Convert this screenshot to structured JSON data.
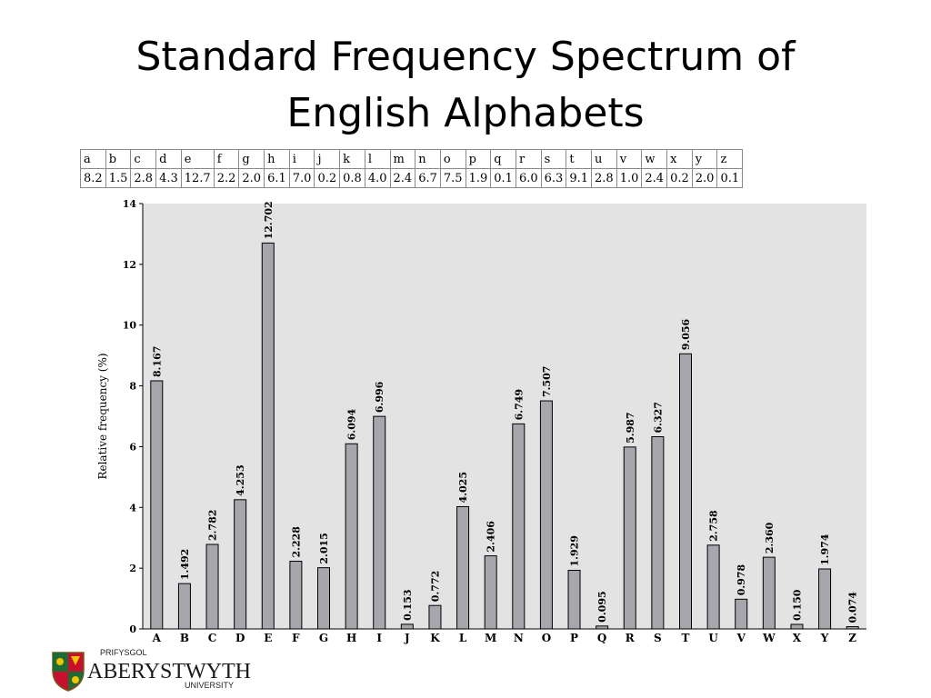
{
  "title_line1": "Standard Frequency Spectrum of",
  "title_line2": "English Alphabets",
  "table": {
    "letters": [
      "a",
      "b",
      "c",
      "d",
      "e",
      "f",
      "g",
      "h",
      "i",
      "j",
      "k",
      "l",
      "m",
      "n",
      "o",
      "p",
      "q",
      "r",
      "s",
      "t",
      "u",
      "v",
      "w",
      "x",
      "y",
      "z"
    ],
    "values": [
      "8.2",
      "1.5",
      "2.8",
      "4.3",
      "12.7",
      "2.2",
      "2.0",
      "6.1",
      "7.0",
      "0.2",
      "0.8",
      "4.0",
      "2.4",
      "6.7",
      "7.5",
      "1.9",
      "0.1",
      "6.0",
      "6.3",
      "9.1",
      "2.8",
      "1.0",
      "2.4",
      "0.2",
      "2.0",
      "0.1"
    ]
  },
  "chart_data": {
    "type": "bar",
    "categories": [
      "A",
      "B",
      "C",
      "D",
      "E",
      "F",
      "G",
      "H",
      "I",
      "J",
      "K",
      "L",
      "M",
      "N",
      "O",
      "P",
      "Q",
      "R",
      "S",
      "T",
      "U",
      "V",
      "W",
      "X",
      "Y",
      "Z"
    ],
    "values": [
      8.167,
      1.492,
      2.782,
      4.253,
      12.702,
      2.228,
      2.015,
      6.094,
      6.996,
      0.153,
      0.772,
      4.025,
      2.406,
      6.749,
      7.507,
      1.929,
      0.095,
      5.987,
      6.327,
      9.056,
      2.758,
      0.978,
      2.36,
      0.15,
      1.974,
      0.074
    ],
    "value_labels": [
      "8.167",
      "1.492",
      "2.782",
      "4.253",
      "12.702",
      "2.228",
      "2.015",
      "6.094",
      "6.996",
      "0.153",
      "0.772",
      "4.025",
      "2.406",
      "6.749",
      "7.507",
      "1.929",
      "0.095",
      "5.987",
      "6.327",
      "9.056",
      "2.758",
      "0.978",
      "2.360",
      "0.150",
      "1.974",
      "0.074"
    ],
    "ylabel": "Relative frequency (%)",
    "xlabel": "",
    "ylim": [
      0,
      14
    ],
    "yticks": [
      0,
      2,
      4,
      6,
      8,
      10,
      12,
      14
    ],
    "grid": false,
    "colors": {
      "bar": "#a6a6ad",
      "plot_bg": "#e3e3e3",
      "bar_stroke": "#000000"
    }
  },
  "logo": {
    "small_top": "PRIFYSGOL",
    "name": "ABERYSTWYTH",
    "small_bottom": "UNIVERSITY",
    "icon": "crest-icon"
  }
}
